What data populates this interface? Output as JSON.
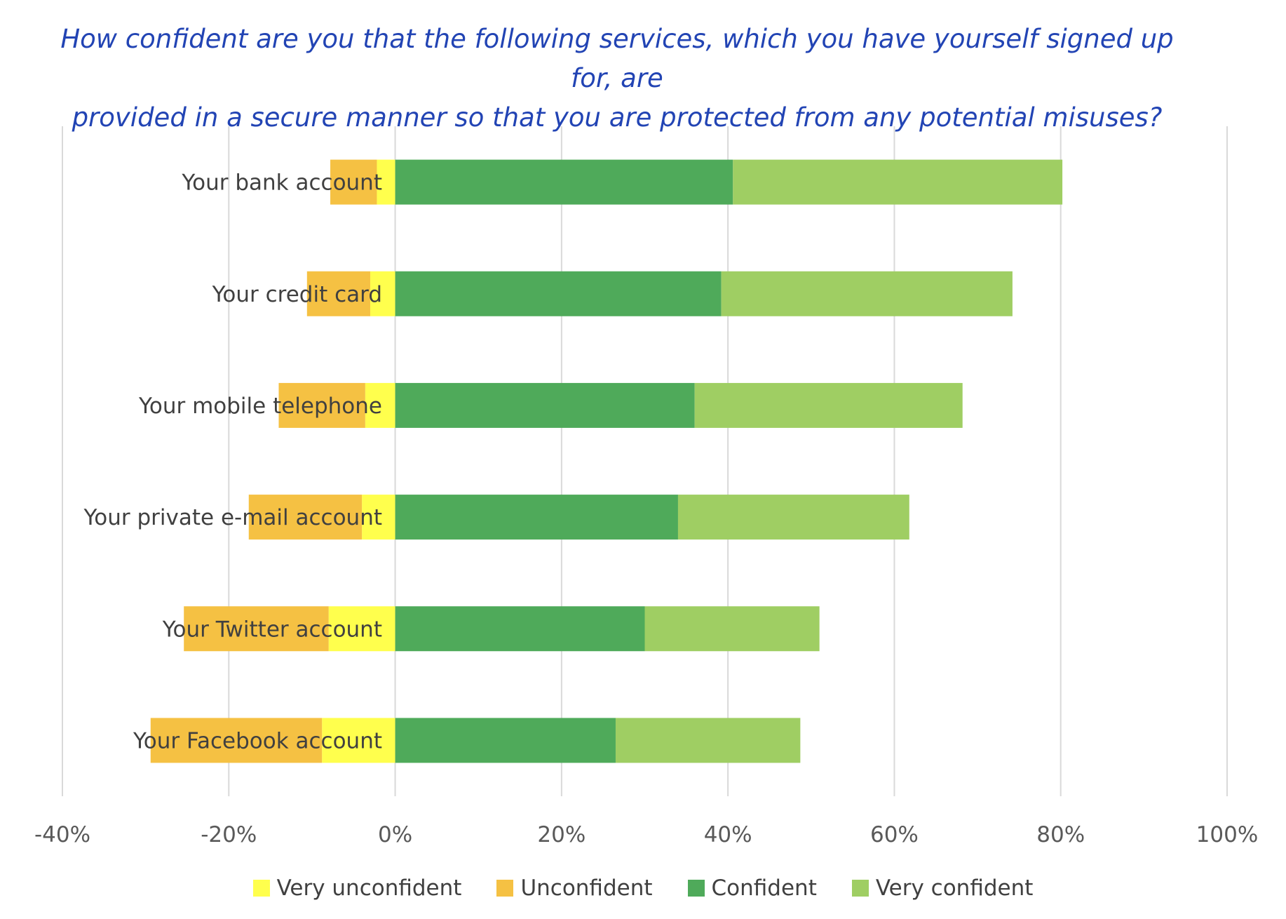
{
  "chart_data": {
    "type": "bar",
    "orientation": "horizontal-stacked-diverging",
    "title": [
      "How confident are you that the following services, which you have yourself signed up for, are",
      "provided in a secure manner so that you are protected from any potential misuses?"
    ],
    "categories": [
      "Your bank account",
      "Your credit card",
      "Your mobile telephone",
      "Your private e-mail account",
      "Your Twitter account",
      "Your Facebook account"
    ],
    "series": [
      {
        "name": "Very unconfident",
        "color": "#ffff4d",
        "values": [
          -2.2,
          -3.0,
          -3.6,
          -4.0,
          -8.0,
          -8.8
        ]
      },
      {
        "name": "Unconfident",
        "color": "#f5c143",
        "values": [
          -5.6,
          -7.6,
          -10.4,
          -13.6,
          -17.4,
          -20.6
        ]
      },
      {
        "name": "Confident",
        "color": "#4faa5a",
        "values": [
          40.6,
          39.2,
          36.0,
          34.0,
          30.0,
          26.5
        ]
      },
      {
        "name": "Very confident",
        "color": "#9fce63",
        "values": [
          39.6,
          35.0,
          32.2,
          27.8,
          21.0,
          22.2
        ]
      }
    ],
    "xlim": [
      -40,
      100
    ],
    "xticks": [
      "-40%",
      "-20%",
      "0%",
      "20%",
      "40%",
      "60%",
      "80%",
      "100%"
    ],
    "xtick_values": [
      -40,
      -20,
      0,
      20,
      40,
      60,
      80,
      100
    ],
    "grid": "vertical",
    "legend": "bottom",
    "xlabel": "",
    "ylabel": ""
  }
}
